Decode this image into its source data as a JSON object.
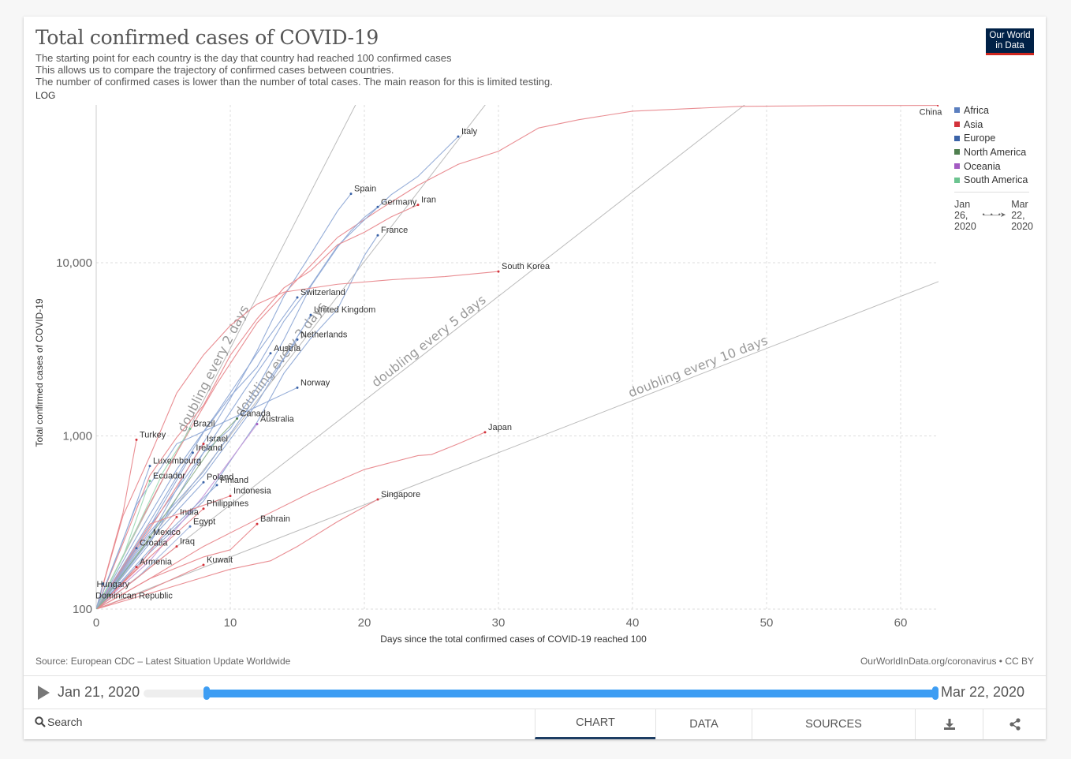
{
  "header": {
    "title": "Total confirmed cases of COVID-19",
    "subtitle_lines": [
      "The starting point for each country is the day that country had reached 100 confirmed cases",
      "This allows us to compare the trajectory of confirmed cases between countries.",
      "The number of confirmed cases is lower than the number of total cases. The main reason for this is limited testing."
    ],
    "scale_toggle": "LOG",
    "logo_line1": "Our World",
    "logo_line2": "in Data"
  },
  "legend": {
    "items": [
      {
        "label": "Africa",
        "color": "#5b7fbf"
      },
      {
        "label": "Asia",
        "color": "#d3333b"
      },
      {
        "label": "Europe",
        "color": "#3b63a8"
      },
      {
        "label": "North America",
        "color": "#4f7f4f"
      },
      {
        "label": "Oceania",
        "color": "#a35bc2"
      },
      {
        "label": "South America",
        "color": "#6cc490"
      }
    ],
    "time_start": [
      "Jan",
      "26,",
      "2020"
    ],
    "time_end": [
      "Mar",
      "22,",
      "2020"
    ],
    "time_arrow": "•—•—•➤"
  },
  "footer": {
    "source": "Source: European CDC – Latest Situation Update Worldwide",
    "credit": "OurWorldInData.org/coronavirus • CC BY"
  },
  "timeline": {
    "start_label": "Jan 21, 2020",
    "end_label": "Mar 22, 2020",
    "selected_start_fraction": 0.08,
    "selected_end_fraction": 1.0,
    "accent_color": "#3d9df3"
  },
  "controls": {
    "search_label": "Search",
    "tabs": [
      "CHART",
      "DATA",
      "SOURCES"
    ],
    "active_tab": "CHART"
  },
  "chart_data": {
    "type": "line",
    "title": "Total confirmed cases of COVID-19",
    "xlabel": "Days since the total confirmed cases of COVID-19 reached 100",
    "ylabel": "Total confirmed cases of COVID-19",
    "yscale": "log",
    "xlim": [
      0,
      63
    ],
    "ylim": [
      100,
      81000
    ],
    "x_ticks": [
      0,
      10,
      20,
      30,
      40,
      50,
      60
    ],
    "x_tick_labels": [
      "0",
      "10",
      "20",
      "30",
      "40",
      "50",
      "60"
    ],
    "y_ticks": [
      100,
      1000,
      10000
    ],
    "y_tick_labels": [
      "100",
      "1,000",
      "10,000"
    ],
    "grid": true,
    "legend_position": "right",
    "reference_lines": [
      {
        "label": "doubling every 2 days",
        "doubling_days": 2
      },
      {
        "label": "doubling every 3 days",
        "doubling_days": 3
      },
      {
        "label": "doubling every 5 days",
        "doubling_days": 5
      },
      {
        "label": "doubling every 10 days",
        "doubling_days": 10
      }
    ],
    "series": [
      {
        "name": "China",
        "region": "Asia",
        "x": [
          0,
          3,
          6,
          9,
          12,
          15,
          18,
          21,
          24,
          27,
          30,
          33,
          36,
          40,
          48,
          55,
          62.8
        ],
        "y": [
          100,
          290,
          800,
          2000,
          4500,
          8000,
          14000,
          20000,
          28000,
          37000,
          44000,
          60000,
          67000,
          75000,
          80000,
          80800,
          81000
        ]
      },
      {
        "name": "Italy",
        "region": "Europe",
        "x": [
          0,
          4,
          8,
          10,
          12,
          14,
          16,
          18,
          20,
          22,
          24,
          27
        ],
        "y": [
          100,
          320,
          1050,
          1690,
          2500,
          4600,
          7400,
          12500,
          17660,
          24700,
          31500,
          53500
        ]
      },
      {
        "name": "Spain",
        "region": "Europe",
        "x": [
          0,
          4,
          7,
          10,
          12,
          14,
          16,
          18,
          19
        ],
        "y": [
          100,
          260,
          680,
          1640,
          3100,
          6400,
          11200,
          19900,
          25000
        ]
      },
      {
        "name": "Germany",
        "region": "Europe",
        "x": [
          0,
          4,
          8,
          10,
          12,
          14,
          16,
          18,
          19,
          20,
          21
        ],
        "y": [
          100,
          240,
          800,
          1100,
          1900,
          3600,
          7300,
          12300,
          15300,
          18300,
          21000
        ]
      },
      {
        "name": "Iran",
        "region": "Asia",
        "x": [
          0,
          2,
          4,
          6,
          8,
          10,
          12,
          14,
          16,
          18,
          20,
          22,
          24
        ],
        "y": [
          100,
          240,
          590,
          980,
          1500,
          2920,
          4750,
          7160,
          9000,
          12700,
          15000,
          18400,
          21600
        ]
      },
      {
        "name": "France",
        "region": "Europe",
        "x": [
          0,
          4,
          8,
          10,
          12,
          14,
          16,
          18,
          19,
          20,
          21
        ],
        "y": [
          100,
          212,
          420,
          716,
          1200,
          2300,
          3660,
          5400,
          7700,
          11000,
          14400
        ]
      },
      {
        "name": "South Korea",
        "region": "Asia",
        "x": [
          0,
          2,
          4,
          6,
          8,
          10,
          12,
          14,
          18,
          22,
          26,
          30
        ],
        "y": [
          100,
          346,
          763,
          1766,
          2931,
          4335,
          5766,
          6767,
          7513,
          7979,
          8320,
          8900
        ]
      },
      {
        "name": "Switzerland",
        "region": "Europe",
        "x": [
          0,
          3,
          6,
          9,
          12,
          15
        ],
        "y": [
          100,
          260,
          640,
          1360,
          3000,
          6300
        ]
      },
      {
        "name": "United Kingdom",
        "region": "Europe",
        "x": [
          0,
          4,
          8,
          12,
          16
        ],
        "y": [
          100,
          270,
          590,
          1550,
          5000
        ]
      },
      {
        "name": "Netherlands",
        "region": "Europe",
        "x": [
          0,
          4,
          8,
          12,
          15
        ],
        "y": [
          100,
          280,
          620,
          1710,
          3600
        ]
      },
      {
        "name": "Austria",
        "region": "Europe",
        "x": [
          0,
          4,
          8,
          11,
          13
        ],
        "y": [
          100,
          300,
          800,
          1800,
          3000
        ]
      },
      {
        "name": "Norway",
        "region": "Europe",
        "x": [
          0,
          3,
          6,
          10,
          15
        ],
        "y": [
          100,
          400,
          900,
          1250,
          1900
        ]
      },
      {
        "name": "Canada",
        "region": "North America",
        "x": [
          0,
          3,
          6,
          9,
          10.5
        ],
        "y": [
          100,
          200,
          440,
          950,
          1260
        ]
      },
      {
        "name": "Australia",
        "region": "Oceania",
        "x": [
          0,
          4,
          8,
          12
        ],
        "y": [
          100,
          190,
          450,
          1170
        ]
      },
      {
        "name": "Brazil",
        "region": "South America",
        "x": [
          0,
          3,
          5,
          7
        ],
        "y": [
          100,
          290,
          620,
          1100
        ]
      },
      {
        "name": "Turkey",
        "region": "Asia",
        "x": [
          0,
          1,
          2,
          3
        ],
        "y": [
          100,
          190,
          360,
          950
        ]
      },
      {
        "name": "Japan",
        "region": "Asia",
        "x": [
          0,
          4,
          8,
          12,
          16,
          20,
          24,
          25,
          27,
          29
        ],
        "y": [
          100,
          150,
          230,
          330,
          470,
          640,
          770,
          780,
          900,
          1050
        ]
      },
      {
        "name": "Israel",
        "region": "Asia",
        "x": [
          0,
          4,
          8
        ],
        "y": [
          100,
          290,
          900
        ]
      },
      {
        "name": "Ireland",
        "region": "Europe",
        "x": [
          0,
          4,
          7.2
        ],
        "y": [
          100,
          300,
          800
        ]
      },
      {
        "name": "Luxembourg",
        "region": "Europe",
        "x": [
          0,
          2,
          4
        ],
        "y": [
          100,
          250,
          670
        ]
      },
      {
        "name": "Ecuador",
        "region": "South America",
        "x": [
          0,
          2,
          4
        ],
        "y": [
          100,
          200,
          550
        ]
      },
      {
        "name": "Poland",
        "region": "Europe",
        "x": [
          0,
          4,
          8
        ],
        "y": [
          100,
          250,
          540
        ]
      },
      {
        "name": "Finland",
        "region": "Europe",
        "x": [
          0,
          4,
          9
        ],
        "y": [
          100,
          220,
          520
        ]
      },
      {
        "name": "Indonesia",
        "region": "Asia",
        "x": [
          0,
          4,
          10
        ],
        "y": [
          100,
          310,
          450
        ]
      },
      {
        "name": "Philippines",
        "region": "Asia",
        "x": [
          0,
          4,
          8
        ],
        "y": [
          100,
          200,
          380
        ]
      },
      {
        "name": "India",
        "region": "Asia",
        "x": [
          0,
          3,
          6
        ],
        "y": [
          100,
          170,
          340
        ]
      },
      {
        "name": "Egypt",
        "region": "Africa",
        "x": [
          0,
          3,
          7
        ],
        "y": [
          100,
          150,
          300
        ]
      },
      {
        "name": "Bahrain",
        "region": "Asia",
        "x": [
          0,
          4,
          8,
          10,
          12
        ],
        "y": [
          100,
          150,
          200,
          220,
          310
        ]
      },
      {
        "name": "Singapore",
        "region": "Asia",
        "x": [
          0,
          5,
          10,
          13,
          15,
          18,
          21
        ],
        "y": [
          100,
          130,
          170,
          190,
          230,
          320,
          430
        ]
      },
      {
        "name": "Mexico",
        "region": "North America",
        "x": [
          0,
          2,
          4
        ],
        "y": [
          100,
          160,
          260
        ]
      },
      {
        "name": "Croatia",
        "region": "Europe",
        "x": [
          0,
          1.5,
          3
        ],
        "y": [
          100,
          150,
          225
        ]
      },
      {
        "name": "Iraq",
        "region": "Asia",
        "x": [
          0,
          3,
          6
        ],
        "y": [
          100,
          150,
          230
        ]
      },
      {
        "name": "Kuwait",
        "region": "Asia",
        "x": [
          0,
          4,
          8
        ],
        "y": [
          100,
          130,
          180
        ]
      },
      {
        "name": "Armenia",
        "region": "Asia",
        "x": [
          0,
          1.5,
          3
        ],
        "y": [
          100,
          130,
          175
        ]
      },
      {
        "name": "Hungary",
        "region": "Europe",
        "x": [
          0,
          0.5
        ],
        "y": [
          100,
          140
        ]
      },
      {
        "name": "Dominican Republic",
        "region": "North America",
        "x": [
          0,
          1
        ],
        "y": [
          100,
          120
        ]
      }
    ]
  }
}
